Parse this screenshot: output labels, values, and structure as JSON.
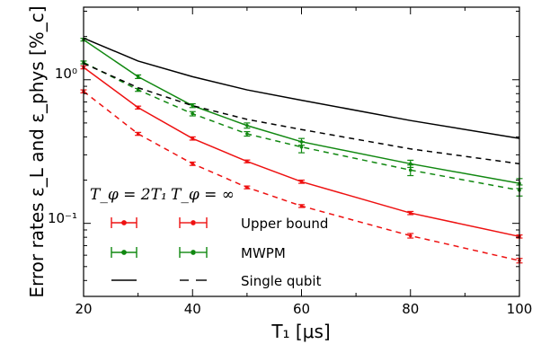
{
  "chart_data": {
    "type": "line",
    "xlabel": "T₁ [μs]",
    "ylabel": "Error rates ε_L and ε_phys [%_c]",
    "x_ticks": [
      "20",
      "40",
      "60",
      "80",
      "100"
    ],
    "y_ticks": [
      "10⁰",
      "10⁻¹"
    ],
    "xlim": [
      20,
      100
    ],
    "ylim": [
      0.031,
      3.2
    ],
    "yscale": "log",
    "grid": false,
    "legend": {
      "placement": "lower-left",
      "column_headers": [
        "T_φ = 2T₁",
        "T_φ = ∞"
      ],
      "rows": [
        "Upper bound",
        "MWPM",
        "Single qubit"
      ]
    },
    "colors": {
      "upper_bound": "#ee1111",
      "mwpm": "#118811",
      "single_qubit": "#000000"
    },
    "series": [
      {
        "name": "Upper bound",
        "t_phi": "2T₁",
        "style": "solid",
        "color": "#ee1111",
        "x": [
          20,
          30,
          40,
          50,
          60,
          80,
          100
        ],
        "values": [
          1.22,
          0.64,
          0.39,
          0.27,
          0.195,
          0.118,
          0.081
        ],
        "errors": [
          0.03,
          0.015,
          0.01,
          0.006,
          0.005,
          0.003,
          0.002
        ]
      },
      {
        "name": "Upper bound",
        "t_phi": "∞",
        "style": "dashed",
        "color": "#ee1111",
        "x": [
          20,
          30,
          40,
          50,
          60,
          80,
          100
        ],
        "values": [
          0.83,
          0.42,
          0.26,
          0.178,
          0.132,
          0.082,
          0.055
        ],
        "errors": [
          0.02,
          0.01,
          0.007,
          0.004,
          0.003,
          0.003,
          0.002
        ]
      },
      {
        "name": "MWPM",
        "t_phi": "2T₁",
        "style": "solid",
        "color": "#118811",
        "x": [
          20,
          30,
          40,
          50,
          60,
          80,
          100
        ],
        "values": [
          1.9,
          1.05,
          0.66,
          0.48,
          0.37,
          0.26,
          0.19
        ],
        "errors": [
          0.04,
          0.03,
          0.02,
          0.02,
          0.02,
          0.015,
          0.015
        ]
      },
      {
        "name": "MWPM",
        "t_phi": "∞",
        "style": "dashed",
        "color": "#118811",
        "x": [
          20,
          30,
          40,
          50,
          60,
          80,
          100
        ],
        "values": [
          1.32,
          0.85,
          0.58,
          0.42,
          0.34,
          0.235,
          0.17
        ],
        "errors": [
          0.03,
          0.02,
          0.02,
          0.015,
          0.03,
          0.02,
          0.015
        ]
      },
      {
        "name": "Single qubit",
        "t_phi": "2T₁",
        "style": "solid",
        "color": "#000000",
        "x": [
          20,
          30,
          40,
          50,
          60,
          80,
          100
        ],
        "values": [
          1.95,
          1.35,
          1.05,
          0.85,
          0.72,
          0.52,
          0.39
        ],
        "errors": []
      },
      {
        "name": "Single qubit",
        "t_phi": "∞",
        "style": "dashed",
        "color": "#000000",
        "x": [
          20,
          30,
          40,
          50,
          60,
          80,
          100
        ],
        "values": [
          1.3,
          0.88,
          0.66,
          0.53,
          0.45,
          0.33,
          0.26
        ],
        "errors": []
      }
    ]
  }
}
